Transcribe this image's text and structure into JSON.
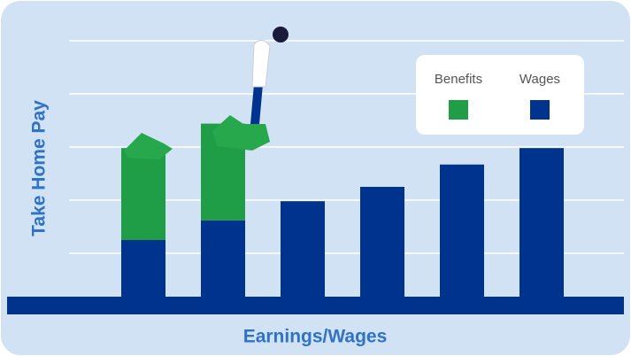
{
  "chart_data": {
    "type": "stacked_bar",
    "y_label": "Take Home Pay",
    "x_label": "Earnings/Wages",
    "categories": [
      null,
      null,
      null,
      null,
      null,
      null
    ],
    "series": [
      {
        "name": "Benefits",
        "color": "#1f9d47",
        "values": [
          1.73,
          1.82,
          0,
          0,
          0,
          0
        ]
      },
      {
        "name": "Wages",
        "color": "#00338d",
        "values": [
          1.25,
          1.62,
          1.98,
          2.25,
          2.67,
          2.98
        ]
      }
    ],
    "ylim": [
      0,
      5
    ],
    "yticks": [
      0,
      1,
      2,
      3,
      4,
      5
    ],
    "grid": true
  }
}
